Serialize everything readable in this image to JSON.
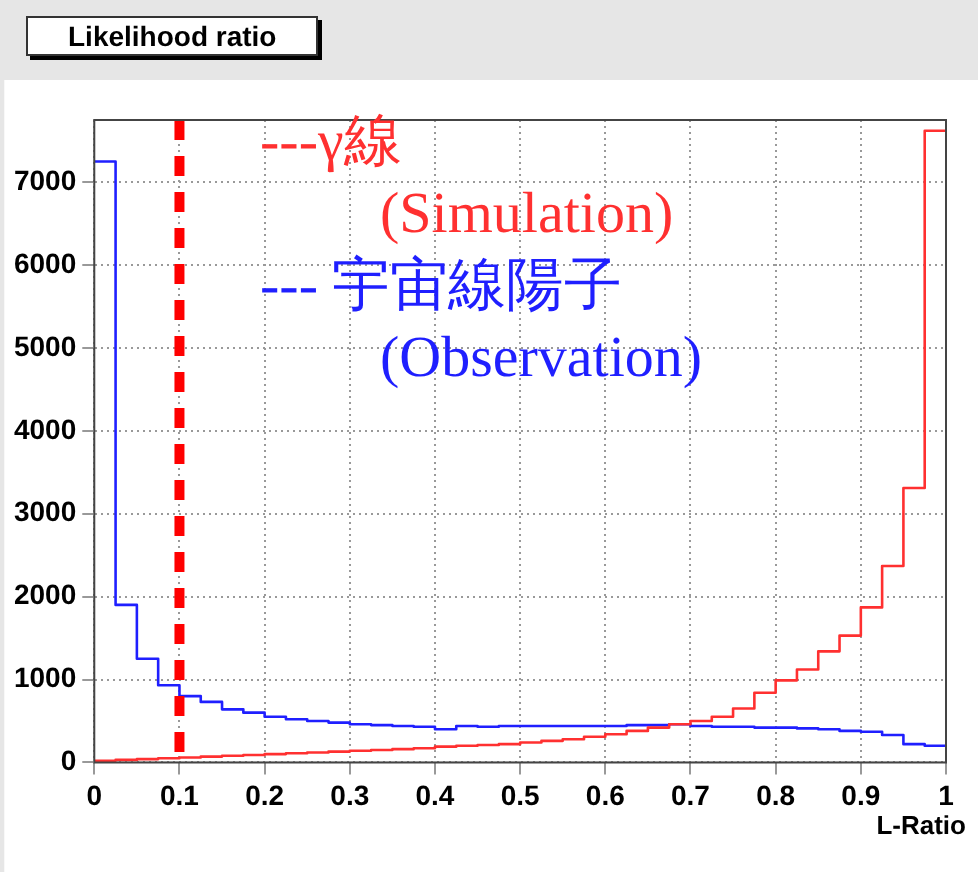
{
  "chart_data": {
    "type": "histogram",
    "title": "Likelihood ratio",
    "xlabel": "L-Ratio",
    "bins": [
      0,
      0.025,
      0.05,
      0.075,
      0.1,
      0.125,
      0.15,
      0.175,
      0.2,
      0.225,
      0.25,
      0.275,
      0.3,
      0.325,
      0.35,
      0.375,
      0.4,
      0.425,
      0.45,
      0.475,
      0.5,
      0.525,
      0.55,
      0.575,
      0.6,
      0.625,
      0.65,
      0.675,
      0.7,
      0.725,
      0.75,
      0.775,
      0.8,
      0.825,
      0.85,
      0.875,
      0.9,
      0.925,
      0.95,
      0.975,
      1
    ],
    "series": [
      {
        "name": "---γ線\n(Simulation)",
        "color": "#ff3030",
        "values": [
          20,
          30,
          40,
          50,
          60,
          70,
          80,
          90,
          100,
          110,
          120,
          130,
          140,
          150,
          160,
          170,
          190,
          200,
          210,
          220,
          240,
          260,
          280,
          310,
          340,
          380,
          420,
          460,
          500,
          550,
          650,
          840,
          990,
          1120,
          1340,
          1530,
          1870,
          2370,
          3310,
          7620
        ]
      },
      {
        "name": "--- 宇宙線陽子\n(Observation)",
        "color": "#1f1fff",
        "values": [
          7250,
          1900,
          1250,
          930,
          800,
          730,
          640,
          600,
          550,
          520,
          500,
          480,
          460,
          450,
          440,
          430,
          400,
          440,
          430,
          440,
          440,
          440,
          440,
          440,
          440,
          450,
          450,
          460,
          440,
          430,
          430,
          420,
          420,
          410,
          400,
          380,
          370,
          330,
          220,
          200
        ]
      }
    ],
    "xlim": [
      0,
      1
    ],
    "ylim": [
      0,
      7750
    ],
    "xticks": [
      0,
      0.1,
      0.2,
      0.3,
      0.4,
      0.5,
      0.6,
      0.7,
      0.8,
      0.9,
      1
    ],
    "yticks": [
      0,
      1000,
      2000,
      3000,
      4000,
      5000,
      6000,
      7000
    ],
    "ref_lines": [
      {
        "axis": "x",
        "value": 0.1,
        "color": "#ff0000",
        "line_style": "dashed"
      }
    ],
    "grid": true,
    "legend": "top"
  }
}
